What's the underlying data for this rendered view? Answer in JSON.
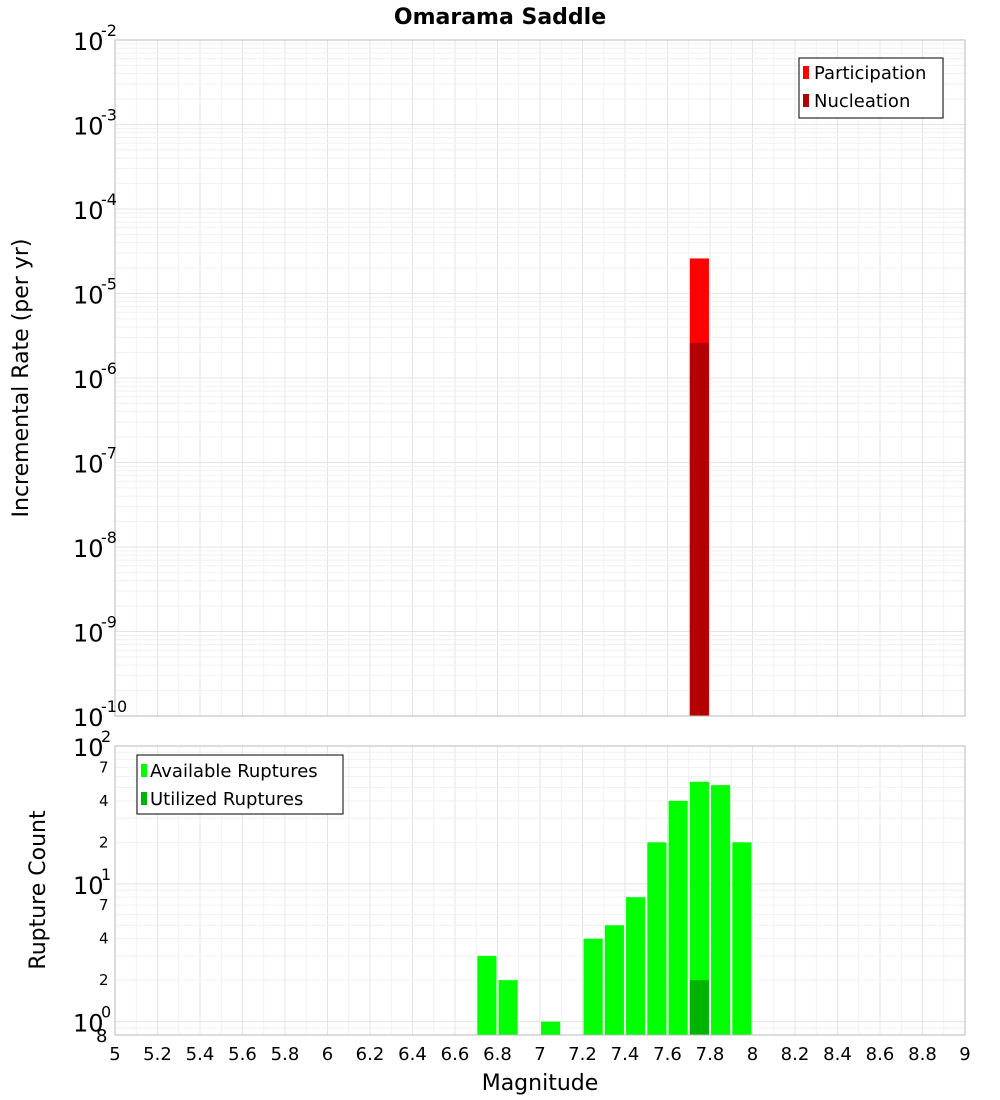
{
  "chart_data": [
    {
      "type": "bar",
      "title": "Omarama Saddle",
      "xlabel": "",
      "ylabel": "Incremental Rate (per yr)",
      "xlim": [
        5,
        9
      ],
      "ylim": [
        1e-10,
        0.01
      ],
      "yscale": "log",
      "grid": true,
      "legend_position": "top-right",
      "y_ticks": [
        {
          "base": "10",
          "exp": "-10",
          "value": 1e-10
        },
        {
          "base": "10",
          "exp": "-9",
          "value": 1e-09
        },
        {
          "base": "10",
          "exp": "-8",
          "value": 1e-08
        },
        {
          "base": "10",
          "exp": "-7",
          "value": 1e-07
        },
        {
          "base": "10",
          "exp": "-6",
          "value": 1e-06
        },
        {
          "base": "10",
          "exp": "-5",
          "value": 1e-05
        },
        {
          "base": "10",
          "exp": "-4",
          "value": 0.0001
        },
        {
          "base": "10",
          "exp": "-3",
          "value": 0.001
        },
        {
          "base": "10",
          "exp": "-2",
          "value": 0.01
        }
      ],
      "series": [
        {
          "name": "Participation",
          "color": "#ff0000",
          "x": [
            7.75
          ],
          "values": [
            2.6e-05
          ]
        },
        {
          "name": "Nucleation",
          "color": "#b30000",
          "x": [
            7.75
          ],
          "values": [
            2.6e-06
          ]
        }
      ]
    },
    {
      "type": "bar",
      "title": "",
      "xlabel": "Magnitude",
      "ylabel": "Rupture Count",
      "xlim": [
        5,
        9
      ],
      "ylim": [
        0.8,
        100
      ],
      "yscale": "log",
      "grid": true,
      "legend_position": "top-left",
      "y_major_ticks": [
        {
          "base": "10",
          "exp": "0",
          "value": 1
        },
        {
          "base": "10",
          "exp": "1",
          "value": 10
        },
        {
          "base": "10",
          "exp": "2",
          "value": 100
        }
      ],
      "y_minor_ticks": [
        {
          "label": "8",
          "value": 0.8
        },
        {
          "label": "2",
          "value": 2
        },
        {
          "label": "4",
          "value": 4
        },
        {
          "label": "7",
          "value": 7
        },
        {
          "label": "2",
          "value": 20
        },
        {
          "label": "4",
          "value": 40
        },
        {
          "label": "7",
          "value": 70
        }
      ],
      "x_ticks": [
        "5",
        "5.2",
        "5.4",
        "5.6",
        "5.8",
        "6",
        "6.2",
        "6.4",
        "6.6",
        "6.8",
        "7",
        "7.2",
        "7.4",
        "7.6",
        "7.8",
        "8",
        "8.2",
        "8.4",
        "8.6",
        "8.8",
        "9"
      ],
      "series": [
        {
          "name": "Available Ruptures",
          "color": "#00ff00",
          "x": [
            6.75,
            6.85,
            7.05,
            7.25,
            7.35,
            7.45,
            7.55,
            7.65,
            7.75,
            7.85,
            7.95
          ],
          "values": [
            3,
            2,
            1,
            4,
            5,
            8,
            20,
            40,
            55,
            52,
            20
          ]
        },
        {
          "name": "Utilized Ruptures",
          "color": "#00b300",
          "x": [
            7.75
          ],
          "values": [
            2
          ]
        }
      ]
    }
  ]
}
